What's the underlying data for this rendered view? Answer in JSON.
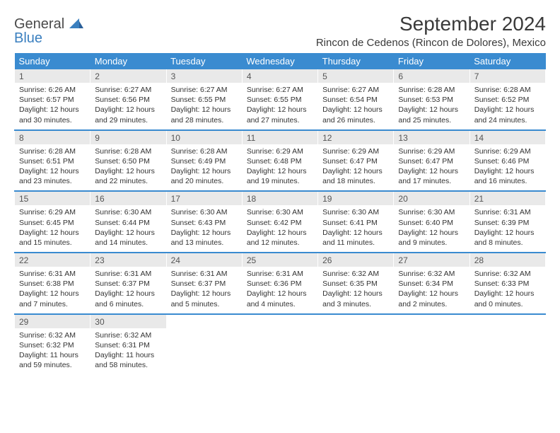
{
  "logo": {
    "general": "General",
    "blue": "Blue"
  },
  "title": "September 2024",
  "location": "Rincon de Cedenos (Rincon de Dolores), Mexico",
  "colors": {
    "header_bg": "#3a8bd0",
    "header_fg": "#ffffff",
    "dayhead_bg": "#e9e9e9",
    "row_border": "#3a8bd0",
    "text": "#333333",
    "logo_gray": "#4a4a4a",
    "logo_blue": "#3a7fbf"
  },
  "weekdays": [
    "Sunday",
    "Monday",
    "Tuesday",
    "Wednesday",
    "Thursday",
    "Friday",
    "Saturday"
  ],
  "weeks": [
    [
      {
        "n": "1",
        "sr": "6:26 AM",
        "ss": "6:57 PM",
        "dl": "12 hours and 30 minutes."
      },
      {
        "n": "2",
        "sr": "6:27 AM",
        "ss": "6:56 PM",
        "dl": "12 hours and 29 minutes."
      },
      {
        "n": "3",
        "sr": "6:27 AM",
        "ss": "6:55 PM",
        "dl": "12 hours and 28 minutes."
      },
      {
        "n": "4",
        "sr": "6:27 AM",
        "ss": "6:55 PM",
        "dl": "12 hours and 27 minutes."
      },
      {
        "n": "5",
        "sr": "6:27 AM",
        "ss": "6:54 PM",
        "dl": "12 hours and 26 minutes."
      },
      {
        "n": "6",
        "sr": "6:28 AM",
        "ss": "6:53 PM",
        "dl": "12 hours and 25 minutes."
      },
      {
        "n": "7",
        "sr": "6:28 AM",
        "ss": "6:52 PM",
        "dl": "12 hours and 24 minutes."
      }
    ],
    [
      {
        "n": "8",
        "sr": "6:28 AM",
        "ss": "6:51 PM",
        "dl": "12 hours and 23 minutes."
      },
      {
        "n": "9",
        "sr": "6:28 AM",
        "ss": "6:50 PM",
        "dl": "12 hours and 22 minutes."
      },
      {
        "n": "10",
        "sr": "6:28 AM",
        "ss": "6:49 PM",
        "dl": "12 hours and 20 minutes."
      },
      {
        "n": "11",
        "sr": "6:29 AM",
        "ss": "6:48 PM",
        "dl": "12 hours and 19 minutes."
      },
      {
        "n": "12",
        "sr": "6:29 AM",
        "ss": "6:47 PM",
        "dl": "12 hours and 18 minutes."
      },
      {
        "n": "13",
        "sr": "6:29 AM",
        "ss": "6:47 PM",
        "dl": "12 hours and 17 minutes."
      },
      {
        "n": "14",
        "sr": "6:29 AM",
        "ss": "6:46 PM",
        "dl": "12 hours and 16 minutes."
      }
    ],
    [
      {
        "n": "15",
        "sr": "6:29 AM",
        "ss": "6:45 PM",
        "dl": "12 hours and 15 minutes."
      },
      {
        "n": "16",
        "sr": "6:30 AM",
        "ss": "6:44 PM",
        "dl": "12 hours and 14 minutes."
      },
      {
        "n": "17",
        "sr": "6:30 AM",
        "ss": "6:43 PM",
        "dl": "12 hours and 13 minutes."
      },
      {
        "n": "18",
        "sr": "6:30 AM",
        "ss": "6:42 PM",
        "dl": "12 hours and 12 minutes."
      },
      {
        "n": "19",
        "sr": "6:30 AM",
        "ss": "6:41 PM",
        "dl": "12 hours and 11 minutes."
      },
      {
        "n": "20",
        "sr": "6:30 AM",
        "ss": "6:40 PM",
        "dl": "12 hours and 9 minutes."
      },
      {
        "n": "21",
        "sr": "6:31 AM",
        "ss": "6:39 PM",
        "dl": "12 hours and 8 minutes."
      }
    ],
    [
      {
        "n": "22",
        "sr": "6:31 AM",
        "ss": "6:38 PM",
        "dl": "12 hours and 7 minutes."
      },
      {
        "n": "23",
        "sr": "6:31 AM",
        "ss": "6:37 PM",
        "dl": "12 hours and 6 minutes."
      },
      {
        "n": "24",
        "sr": "6:31 AM",
        "ss": "6:37 PM",
        "dl": "12 hours and 5 minutes."
      },
      {
        "n": "25",
        "sr": "6:31 AM",
        "ss": "6:36 PM",
        "dl": "12 hours and 4 minutes."
      },
      {
        "n": "26",
        "sr": "6:32 AM",
        "ss": "6:35 PM",
        "dl": "12 hours and 3 minutes."
      },
      {
        "n": "27",
        "sr": "6:32 AM",
        "ss": "6:34 PM",
        "dl": "12 hours and 2 minutes."
      },
      {
        "n": "28",
        "sr": "6:32 AM",
        "ss": "6:33 PM",
        "dl": "12 hours and 0 minutes."
      }
    ],
    [
      {
        "n": "29",
        "sr": "6:32 AM",
        "ss": "6:32 PM",
        "dl": "11 hours and 59 minutes."
      },
      {
        "n": "30",
        "sr": "6:32 AM",
        "ss": "6:31 PM",
        "dl": "11 hours and 58 minutes."
      },
      null,
      null,
      null,
      null,
      null
    ]
  ],
  "labels": {
    "sunrise": "Sunrise:",
    "sunset": "Sunset:",
    "daylight": "Daylight:"
  }
}
